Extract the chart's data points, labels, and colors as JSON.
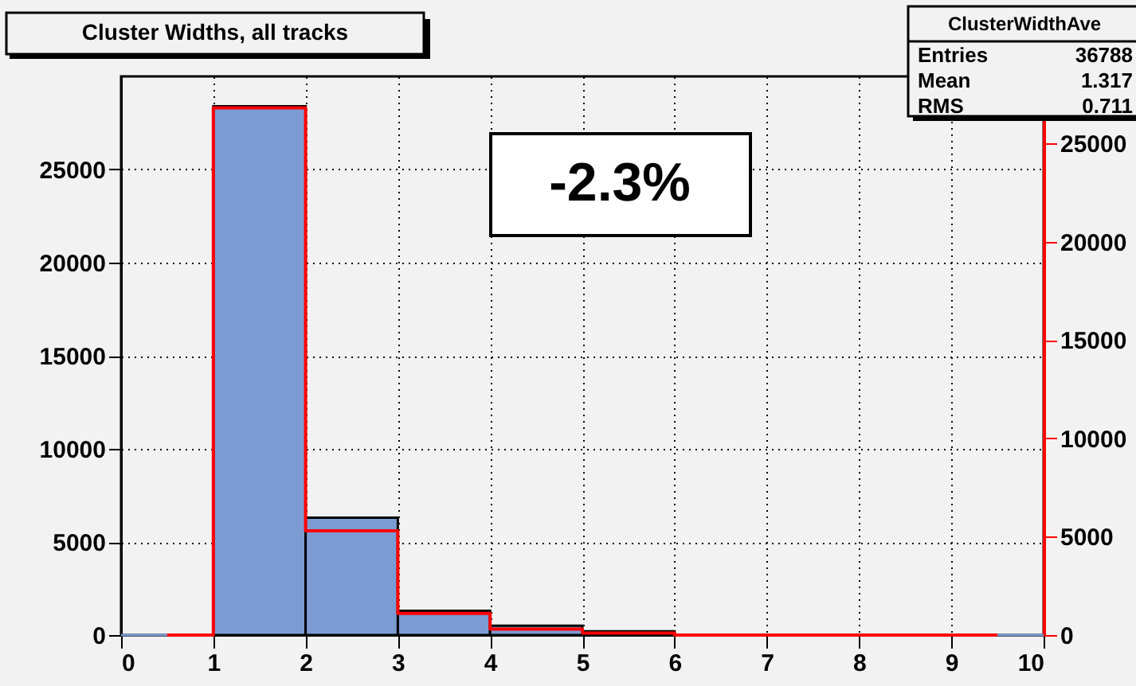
{
  "chart_data": {
    "type": "histogram",
    "title": "Cluster Widths, all tracks",
    "bins": [
      0,
      1,
      2,
      3,
      4,
      5,
      6,
      7,
      8,
      9,
      10
    ],
    "xlim": [
      0,
      10
    ],
    "xticks": [
      0,
      1,
      2,
      3,
      4,
      5,
      6,
      7,
      8,
      9,
      10
    ],
    "ylim": [
      0,
      30000
    ],
    "yticks": [
      0,
      5000,
      10000,
      15000,
      20000,
      25000
    ],
    "y2lim": [
      0,
      28400
    ],
    "y2ticks": [
      0,
      5000,
      10000,
      15000,
      20000,
      25000
    ],
    "grid": true,
    "series": [
      {
        "color": "#7b9bd2",
        "values": [
          0,
          28400,
          6300,
          1300,
          500,
          200,
          0,
          0,
          0,
          0
        ]
      },
      {
        "type": "step",
        "axis": "y2",
        "color": "#ff0000",
        "x": [
          0.5,
          1.5,
          2.5,
          3.5,
          4.5,
          5.5,
          6.5,
          7.5,
          8.5,
          9.5
        ],
        "values": [
          0,
          26800,
          5300,
          1100,
          300,
          100,
          0,
          0,
          0,
          0
        ]
      }
    ],
    "annotations": [
      "ClusterWidthAve",
      "Entries 36788",
      "Mean 1.317",
      "RMS 0.711",
      "-2.3%"
    ]
  }
}
